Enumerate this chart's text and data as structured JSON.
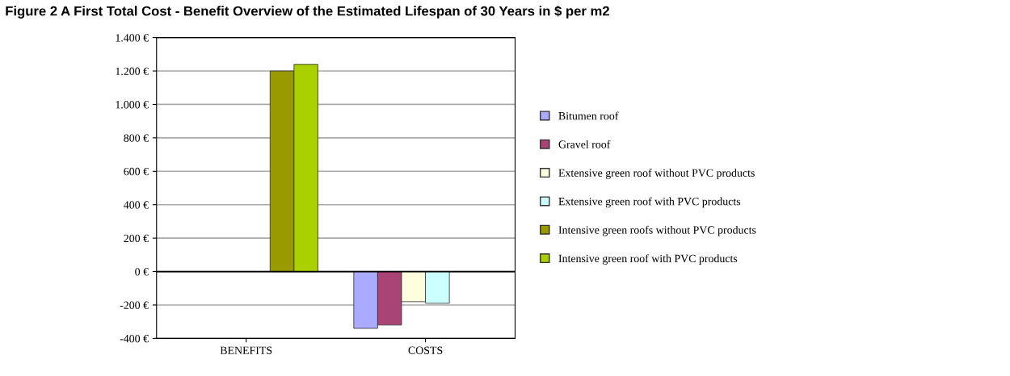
{
  "chart_data": {
    "type": "bar",
    "title": "Figure 2 A First Total Cost - Benefit Overview of the Estimated Lifespan of 30 Years in $ per m2",
    "categories": [
      "BENEFITS",
      "COSTS"
    ],
    "series": [
      {
        "name": "Bitumen roof",
        "color": "#aaaaff",
        "values": [
          null,
          -340
        ]
      },
      {
        "name": "Gravel roof",
        "color": "#aa4477",
        "values": [
          null,
          -320
        ]
      },
      {
        "name": "Extensive green roof without PVC products",
        "color": "#ffffdd",
        "values": [
          null,
          -180
        ]
      },
      {
        "name": "Extensive green roof with PVC products",
        "color": "#ccffff",
        "values": [
          null,
          -190
        ]
      },
      {
        "name": "Intensive green roofs without PVC products",
        "color": "#999900",
        "values": [
          1200,
          null
        ]
      },
      {
        "name": "Intensive green roof with PVC products",
        "color": "#aad000",
        "values": [
          1240,
          null
        ]
      }
    ],
    "ylim": [
      -400,
      1400
    ],
    "yticks": [
      {
        "value": -400,
        "label": "-400 €"
      },
      {
        "value": -200,
        "label": "-200 €"
      },
      {
        "value": 0,
        "label": "0 €"
      },
      {
        "value": 200,
        "label": "200 €"
      },
      {
        "value": 400,
        "label": "400 €"
      },
      {
        "value": 600,
        "label": "600 €"
      },
      {
        "value": 800,
        "label": "800 €"
      },
      {
        "value": 1000,
        "label": "1.000 €"
      },
      {
        "value": 1200,
        "label": "1.200 €"
      },
      {
        "value": 1400,
        "label": "1.400 €"
      }
    ],
    "grid": "y",
    "legend": "right"
  }
}
